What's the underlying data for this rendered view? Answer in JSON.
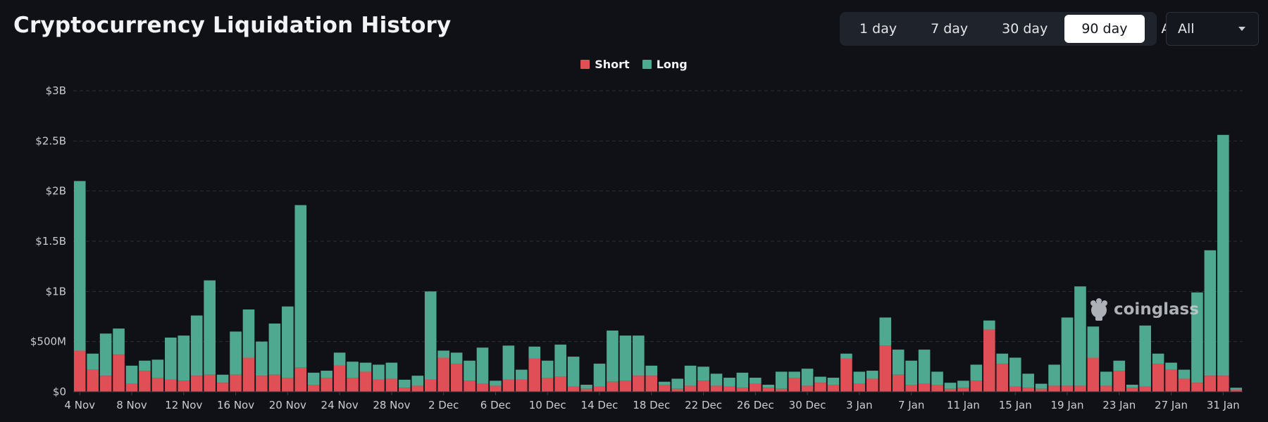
{
  "header": {
    "title": "Cryptocurrency Liquidation History"
  },
  "range_buttons": [
    {
      "label": "1 day",
      "active": false
    },
    {
      "label": "7 day",
      "active": false
    },
    {
      "label": "30 day",
      "active": false
    },
    {
      "label": "90 day",
      "active": true
    },
    {
      "label": "All",
      "active": false
    }
  ],
  "symbol_select": {
    "value": "All"
  },
  "watermark": {
    "text": "coinglass",
    "icon": "coinglass-logo-icon"
  },
  "colors": {
    "short": "#e04e56",
    "long": "#4fa990",
    "grid": "#2c3038",
    "axis_text": "#c9ccd2"
  },
  "chart_data": {
    "type": "bar",
    "stacked": true,
    "legend": [
      "Short",
      "Long"
    ],
    "legend_position": "top-center",
    "grid": true,
    "ylim": [
      0,
      3000000000
    ],
    "yticks": [
      {
        "value": 0,
        "label": "$0"
      },
      {
        "value": 500000000,
        "label": "$500M"
      },
      {
        "value": 1000000000,
        "label": "$1B"
      },
      {
        "value": 1500000000,
        "label": "$1.5B"
      },
      {
        "value": 2000000000,
        "label": "$2B"
      },
      {
        "value": 2500000000,
        "label": "$2.5B"
      },
      {
        "value": 3000000000,
        "label": "$3B"
      }
    ],
    "xtick_labels": [
      {
        "index": 0,
        "label": "4 Nov"
      },
      {
        "index": 4,
        "label": "8 Nov"
      },
      {
        "index": 8,
        "label": "12 Nov"
      },
      {
        "index": 12,
        "label": "16 Nov"
      },
      {
        "index": 16,
        "label": "20 Nov"
      },
      {
        "index": 20,
        "label": "24 Nov"
      },
      {
        "index": 24,
        "label": "28 Nov"
      },
      {
        "index": 28,
        "label": "2 Dec"
      },
      {
        "index": 32,
        "label": "6 Dec"
      },
      {
        "index": 36,
        "label": "10 Dec"
      },
      {
        "index": 40,
        "label": "14 Dec"
      },
      {
        "index": 44,
        "label": "18 Dec"
      },
      {
        "index": 48,
        "label": "22 Dec"
      },
      {
        "index": 52,
        "label": "26 Dec"
      },
      {
        "index": 56,
        "label": "30 Dec"
      },
      {
        "index": 60,
        "label": "3 Jan"
      },
      {
        "index": 64,
        "label": "7 Jan"
      },
      {
        "index": 68,
        "label": "11 Jan"
      },
      {
        "index": 72,
        "label": "15 Jan"
      },
      {
        "index": 76,
        "label": "19 Jan"
      },
      {
        "index": 80,
        "label": "23 Jan"
      },
      {
        "index": 84,
        "label": "27 Jan"
      },
      {
        "index": 88,
        "label": "31 Jan"
      }
    ],
    "series": [
      {
        "name": "Short",
        "values": [
          410000000,
          220000000,
          160000000,
          370000000,
          80000000,
          210000000,
          140000000,
          120000000,
          110000000,
          160000000,
          170000000,
          90000000,
          170000000,
          340000000,
          160000000,
          170000000,
          140000000,
          240000000,
          70000000,
          140000000,
          260000000,
          140000000,
          200000000,
          120000000,
          130000000,
          40000000,
          60000000,
          120000000,
          340000000,
          280000000,
          110000000,
          80000000,
          60000000,
          120000000,
          120000000,
          330000000,
          140000000,
          150000000,
          50000000,
          30000000,
          50000000,
          100000000,
          110000000,
          160000000,
          160000000,
          70000000,
          30000000,
          60000000,
          110000000,
          60000000,
          50000000,
          40000000,
          80000000,
          40000000,
          30000000,
          140000000,
          60000000,
          90000000,
          70000000,
          330000000,
          80000000,
          130000000,
          460000000,
          170000000,
          70000000,
          80000000,
          70000000,
          30000000,
          40000000,
          110000000,
          620000000,
          280000000,
          50000000,
          40000000,
          30000000,
          60000000,
          60000000,
          60000000,
          340000000,
          60000000,
          210000000,
          40000000,
          50000000,
          280000000,
          220000000,
          130000000,
          90000000,
          160000000,
          160000000,
          20000000
        ]
      },
      {
        "name": "Long",
        "values": [
          1690000000,
          160000000,
          420000000,
          260000000,
          180000000,
          100000000,
          180000000,
          420000000,
          450000000,
          600000000,
          940000000,
          80000000,
          430000000,
          480000000,
          340000000,
          510000000,
          710000000,
          1620000000,
          120000000,
          70000000,
          130000000,
          160000000,
          90000000,
          150000000,
          160000000,
          80000000,
          100000000,
          880000000,
          70000000,
          110000000,
          200000000,
          360000000,
          50000000,
          340000000,
          100000000,
          120000000,
          170000000,
          320000000,
          300000000,
          40000000,
          230000000,
          510000000,
          450000000,
          400000000,
          100000000,
          30000000,
          100000000,
          200000000,
          140000000,
          120000000,
          90000000,
          150000000,
          60000000,
          30000000,
          170000000,
          60000000,
          170000000,
          60000000,
          70000000,
          50000000,
          120000000,
          80000000,
          280000000,
          250000000,
          240000000,
          340000000,
          130000000,
          60000000,
          70000000,
          160000000,
          90000000,
          100000000,
          290000000,
          140000000,
          50000000,
          210000000,
          680000000,
          990000000,
          310000000,
          140000000,
          100000000,
          30000000,
          610000000,
          100000000,
          70000000,
          90000000,
          900000000,
          1250000000,
          2400000000,
          20000000
        ]
      }
    ]
  }
}
